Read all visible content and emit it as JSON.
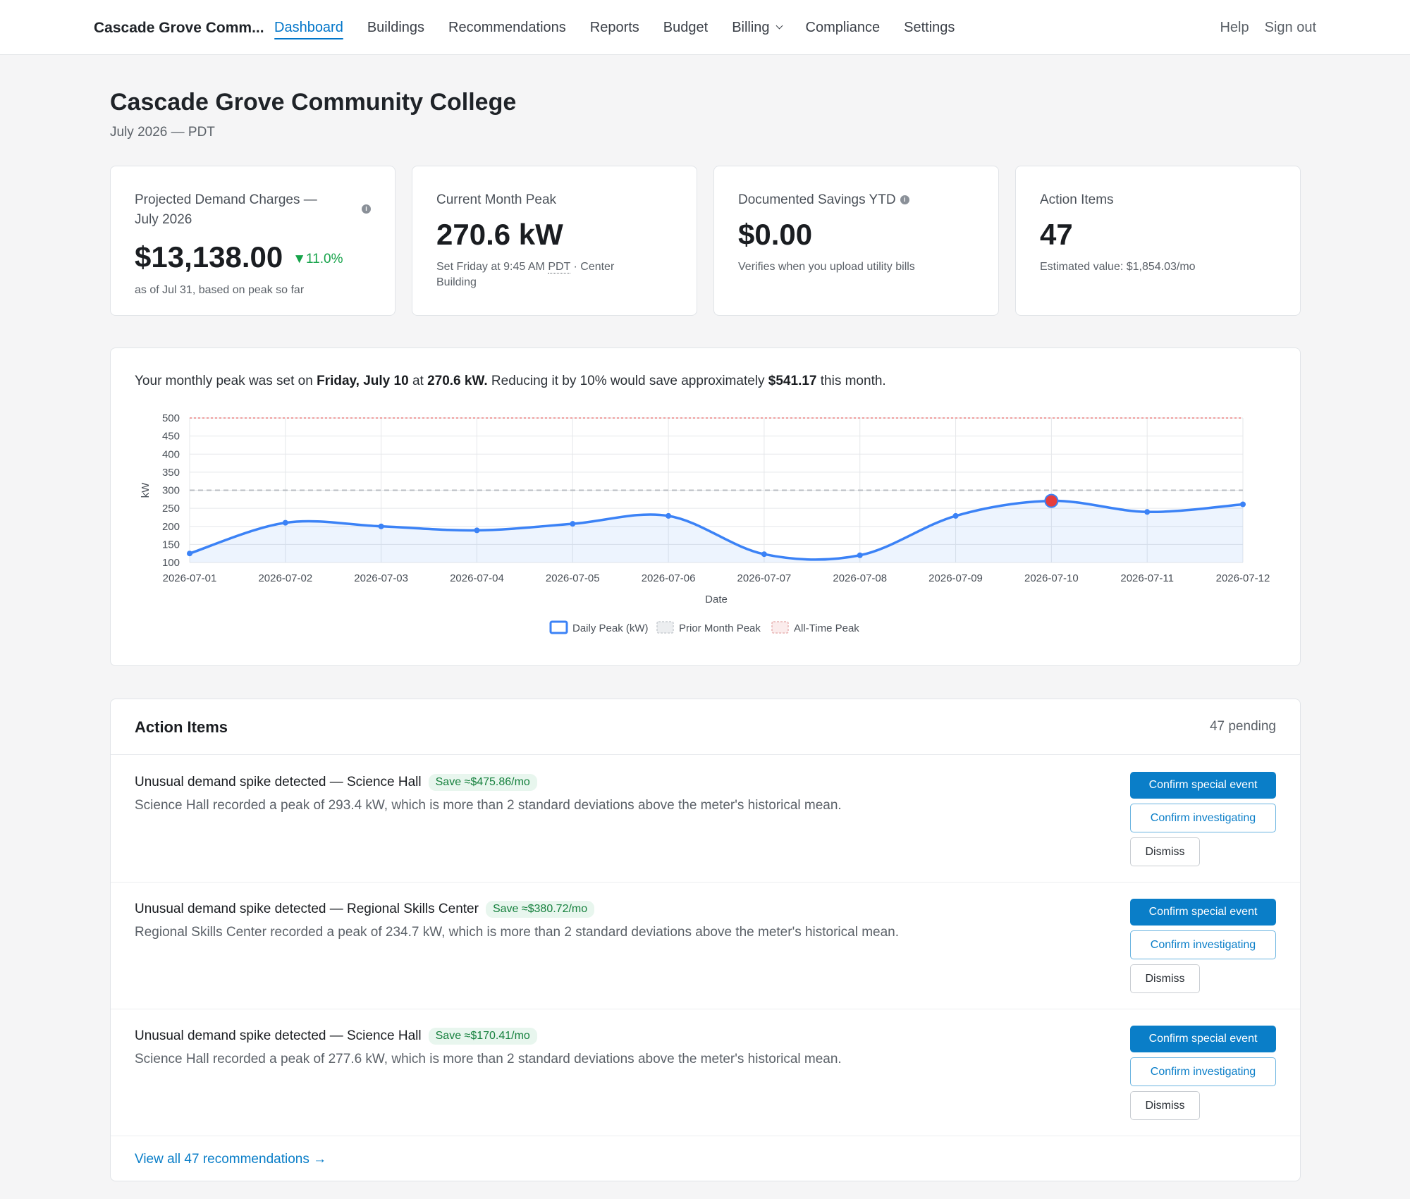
{
  "nav": {
    "brand": "Cascade Grove Comm...",
    "links": [
      "Dashboard",
      "Buildings",
      "Recommendations",
      "Reports",
      "Budget",
      "Billing",
      "Compliance",
      "Settings"
    ],
    "help": "Help",
    "signout": "Sign out"
  },
  "header": {
    "title": "Cascade Grove Community College",
    "subtitle": "July 2026 — PDT"
  },
  "kpis": {
    "projected": {
      "label_line1": "Projected Demand Charges —",
      "label_line2": "July 2026",
      "value": "$13,138.00",
      "delta": "▼11.0%",
      "sub": "as of Jul 31, based on peak so far"
    },
    "peak": {
      "label": "Current Month Peak",
      "value": "270.6 kW",
      "sub_prefix": "Set Friday at 9:45 AM",
      "sub_tz": "PDT",
      "sub_mid": "· Center",
      "sub_line2": "Building"
    },
    "savings": {
      "label": "Documented Savings YTD",
      "value": "$0.00",
      "sub": "Verifies when you upload utility bills"
    },
    "actions": {
      "label": "Action Items",
      "value": "47",
      "sub": "Estimated value: $1,854.03/mo"
    }
  },
  "chart_summary": {
    "p1": "Your monthly peak was set on ",
    "b1": "Friday, July 10",
    "p2": " at ",
    "b2": "270.6 kW.",
    "p3": " Reducing it by 10% would save approximately ",
    "b3": "$541.17",
    "p4": " this month."
  },
  "chart_data": {
    "type": "line",
    "x": [
      "2026-07-01",
      "2026-07-02",
      "2026-07-03",
      "2026-07-04",
      "2026-07-05",
      "2026-07-06",
      "2026-07-07",
      "2026-07-08",
      "2026-07-09",
      "2026-07-10",
      "2026-07-11",
      "2026-07-12"
    ],
    "series": [
      {
        "name": "Daily Peak (kW)",
        "values": [
          125,
          210,
          200,
          189,
          207,
          229,
          123,
          120,
          229,
          270.6,
          240,
          261
        ],
        "color": "#3b82f6"
      }
    ],
    "reference_lines": [
      {
        "name": "Prior Month Peak",
        "value": 300,
        "color": "#b8bcc2"
      },
      {
        "name": "All-Time Peak",
        "value": 500,
        "color": "#f0a0a0"
      }
    ],
    "highlight_index": 9,
    "highlight_color": "#e53e3e",
    "xlabel": "Date",
    "ylabel": "kW",
    "ylim": [
      100,
      500
    ],
    "yticks": [
      100,
      150,
      200,
      250,
      300,
      350,
      400,
      450,
      500
    ],
    "grid": true,
    "legend": "bottom"
  },
  "action_items": {
    "title": "Action Items",
    "count": "47 pending",
    "rows": [
      {
        "title": "Unusual demand spike detected — Science Hall",
        "save": "Save ≈$475.86/mo",
        "desc": "Science Hall recorded a peak of 293.4 kW, which is more than 2 standard deviations above the meter's historical mean."
      },
      {
        "title": "Unusual demand spike detected — Regional Skills Center",
        "save": "Save ≈$380.72/mo",
        "desc": "Regional Skills Center recorded a peak of 234.7 kW, which is more than 2 standard deviations above the meter's historical mean."
      },
      {
        "title": "Unusual demand spike detected — Science Hall",
        "save": "Save ≈$170.41/mo",
        "desc": "Science Hall recorded a peak of 277.6 kW, which is more than 2 standard deviations above the meter's historical mean."
      }
    ],
    "btn_confirm_event": "Confirm special event",
    "btn_confirm_investigating": "Confirm investigating",
    "btn_dismiss": "Dismiss",
    "view_all": "View all 47 recommendations →"
  }
}
